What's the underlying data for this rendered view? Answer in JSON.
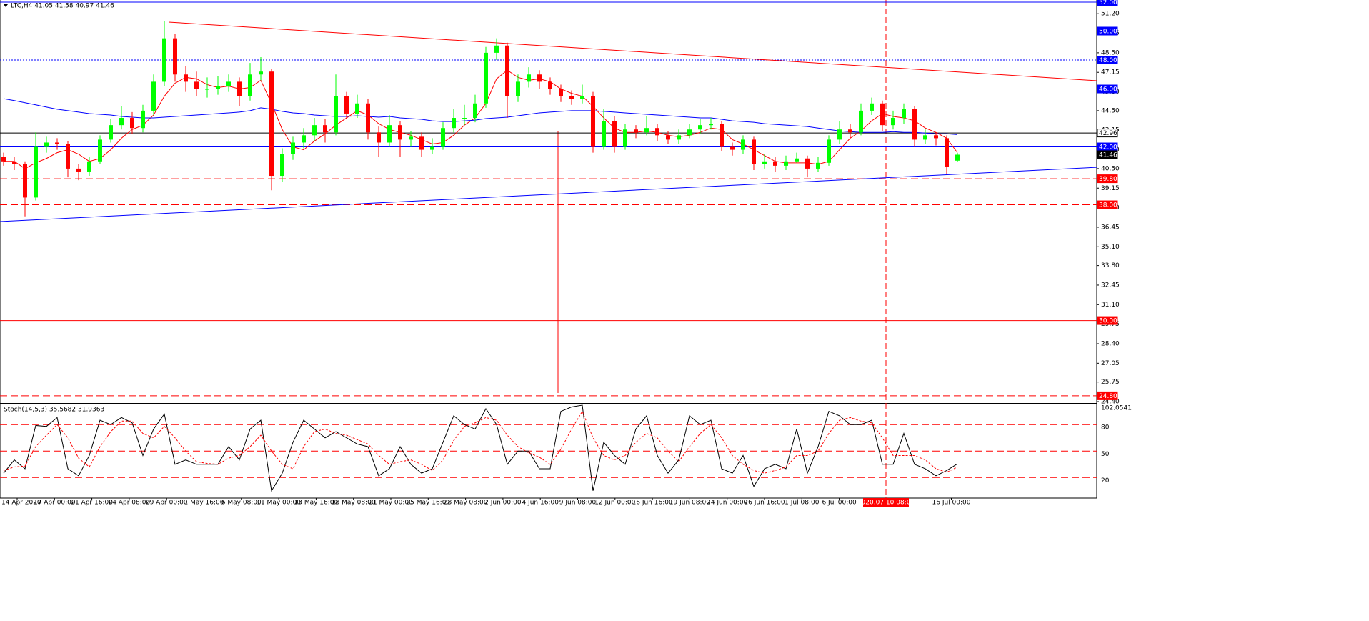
{
  "chart_data": {
    "type": "candlestick",
    "title": "LTC,H4  41.05 41.58 40.97 41.46",
    "ylim": [
      24.4,
      52.0
    ],
    "yticks": [
      {
        "value": 51.2,
        "label": "51.20"
      },
      49.85,
      {
        "value": 48.5,
        "label": "48.50"
      },
      47.15,
      {
        "value": 45.8,
        "label": "45.80"
      },
      {
        "value": 44.5,
        "label": "44.50"
      },
      43.15,
      {
        "value": 41.8,
        "label": "41.80"
      },
      {
        "value": 40.5,
        "label": "40.50"
      },
      39.15,
      {
        "value": 37.8,
        "label": "37.80"
      },
      36.45,
      {
        "value": 35.1,
        "label": "35.10"
      },
      {
        "value": 33.8,
        "label": "33.80"
      },
      32.45,
      {
        "value": 31.1,
        "label": "31.10"
      },
      29.75,
      {
        "value": 28.4,
        "label": "28.40"
      },
      27.05,
      25.75,
      {
        "value": 24.4,
        "label": "24.40"
      }
    ],
    "time_labels": [
      "14 Apr 2020",
      "17 Apr 00:00",
      "21 Apr 16:00",
      "24 Apr 08:00",
      "29 Apr 00:00",
      "1 May 16:00",
      "6 May 08:00",
      "11 May 00:00",
      "13 May 16:00",
      "18 May 08:00",
      "21 May 00:00",
      "25 May 16:00",
      "28 May 08:00",
      "2 Jun 00:00",
      "4 Jun 16:00",
      "9 Jun 08:00",
      "12 Jun 00:00",
      "16 Jun 16:00",
      "19 Jun 08:00",
      "24 Jun 00:00",
      "26 Jun 16:00",
      "1 Jul 08:00",
      "6 Jul 00:00",
      "16 Jul 00:00"
    ],
    "crosshair_label": "2020.07.10 08:00",
    "up_color": "#00ff00",
    "down_color": "#ff0000",
    "open": [
      41.3,
      41.0,
      40.8,
      38.5,
      42.0,
      42.3,
      42.2,
      40.5,
      40.3,
      41.0,
      42.5,
      43.5,
      44.0,
      43.3,
      44.5,
      46.5,
      49.5,
      47.0,
      46.5,
      46.0,
      46.0,
      46.2,
      46.5,
      45.5,
      47.0,
      47.2,
      40.0,
      41.5,
      42.3,
      42.8,
      43.5,
      43.0,
      45.5,
      44.3,
      45.0,
      43.0,
      42.3,
      43.5,
      42.5,
      42.7,
      41.8,
      42.0,
      43.3,
      44.0,
      44.0,
      45.0,
      48.5,
      49.0,
      45.5,
      46.5,
      47.0,
      46.5,
      46.0,
      45.5,
      45.3,
      45.5,
      42.0,
      43.8,
      42.0,
      43.2,
      43.0,
      43.3,
      42.8,
      42.5,
      42.8,
      43.2,
      43.5,
      43.6,
      42.0,
      41.8,
      42.5,
      40.8,
      41.0,
      40.7,
      41.0,
      41.2,
      40.5,
      40.9,
      42.5,
      43.2,
      43.0,
      44.5,
      45.0,
      43.5,
      44.0,
      44.6,
      42.5,
      42.8,
      42.6,
      41.05
    ],
    "high": [
      41.6,
      41.3,
      41.0,
      43.0,
      42.7,
      42.6,
      42.4,
      40.8,
      41.3,
      42.8,
      43.9,
      44.8,
      44.4,
      44.9,
      47.0,
      50.7,
      49.8,
      47.6,
      47.2,
      46.8,
      46.9,
      47.0,
      46.8,
      47.8,
      48.2,
      47.4,
      41.9,
      42.7,
      43.3,
      44.0,
      43.9,
      47.0,
      45.8,
      45.6,
      45.3,
      43.4,
      44.2,
      43.8,
      43.1,
      43.0,
      42.6,
      43.7,
      44.6,
      44.9,
      45.6,
      48.9,
      49.5,
      49.2,
      47.0,
      47.5,
      47.3,
      46.8,
      46.3,
      45.9,
      46.3,
      45.8,
      44.6,
      44.1,
      43.6,
      43.5,
      44.1,
      43.6,
      43.1,
      43.2,
      43.6,
      43.9,
      44.0,
      43.8,
      42.3,
      42.8,
      42.7,
      41.5,
      41.3,
      41.4,
      41.6,
      41.4,
      41.3,
      42.8,
      43.8,
      43.6,
      45.0,
      45.4,
      45.2,
      44.5,
      45.0,
      44.8,
      43.2,
      43.0,
      42.8,
      41.58
    ],
    "low": [
      40.7,
      40.4,
      37.2,
      38.3,
      41.6,
      41.8,
      39.9,
      39.7,
      40.0,
      40.8,
      42.3,
      43.2,
      42.9,
      43.0,
      44.2,
      46.2,
      46.5,
      45.8,
      45.5,
      45.4,
      45.6,
      45.8,
      44.8,
      45.2,
      46.6,
      39.0,
      39.6,
      41.1,
      41.9,
      42.4,
      42.3,
      42.8,
      43.9,
      44.0,
      42.5,
      41.3,
      42.0,
      41.3,
      42.0,
      41.3,
      41.5,
      41.8,
      43.0,
      43.5,
      43.7,
      44.7,
      48.0,
      44.0,
      45.1,
      46.1,
      46.0,
      45.6,
      45.1,
      44.9,
      45.0,
      41.6,
      41.8,
      41.6,
      41.8,
      42.6,
      42.8,
      42.4,
      42.2,
      42.2,
      42.6,
      42.9,
      43.2,
      41.7,
      41.4,
      41.5,
      40.4,
      40.5,
      40.3,
      40.4,
      40.9,
      39.9,
      40.3,
      40.7,
      42.2,
      42.6,
      42.8,
      44.2,
      43.1,
      43.2,
      43.6,
      42.0,
      42.2,
      42.1,
      40.1,
      40.97
    ],
    "close": [
      41.0,
      40.8,
      38.5,
      42.0,
      42.3,
      42.2,
      40.5,
      40.3,
      41.0,
      42.5,
      43.5,
      44.0,
      43.3,
      44.5,
      46.5,
      49.5,
      47.0,
      46.5,
      46.0,
      46.0,
      46.2,
      46.5,
      45.5,
      47.0,
      47.2,
      40.0,
      41.5,
      42.3,
      42.8,
      43.5,
      43.0,
      45.5,
      44.3,
      45.0,
      43.0,
      42.3,
      43.5,
      42.5,
      42.7,
      41.8,
      42.0,
      43.3,
      44.0,
      44.0,
      45.0,
      48.5,
      49.0,
      45.5,
      46.5,
      47.0,
      46.5,
      46.0,
      45.5,
      45.3,
      45.5,
      42.0,
      43.8,
      42.0,
      43.2,
      43.0,
      43.3,
      42.8,
      42.5,
      42.8,
      43.2,
      43.5,
      43.6,
      42.0,
      41.8,
      42.5,
      40.8,
      41.0,
      40.7,
      41.0,
      41.2,
      40.5,
      40.9,
      42.5,
      43.2,
      43.0,
      44.5,
      45.0,
      43.5,
      44.0,
      44.6,
      42.5,
      42.8,
      42.6,
      40.6,
      41.46
    ],
    "lines": [
      {
        "color": "#ff0000",
        "values": [
          41.0,
          41.0,
          40.5,
          40.9,
          41.2,
          41.6,
          41.8,
          41.5,
          41.0,
          41.2,
          41.8,
          42.6,
          43.2,
          43.5,
          44.2,
          45.5,
          46.4,
          46.8,
          46.7,
          46.3,
          46.1,
          46.2,
          46.0,
          46.1,
          46.6,
          45.0,
          43.2,
          42.0,
          41.8,
          42.4,
          42.9,
          43.5,
          44.0,
          44.5,
          44.2,
          43.6,
          43.2,
          43.0,
          42.8,
          42.5,
          42.2,
          42.3,
          42.8,
          43.5,
          44.0,
          45.0,
          46.7,
          47.3,
          46.8,
          46.6,
          46.7,
          46.5,
          46.0,
          45.7,
          45.5,
          44.8,
          44.0,
          43.3,
          43.0,
          43.0,
          43.1,
          43.0,
          42.8,
          42.7,
          42.8,
          43.0,
          43.3,
          43.2,
          42.5,
          42.2,
          41.8,
          41.4,
          41.0,
          40.9,
          40.9,
          40.9,
          40.8,
          41.0,
          41.8,
          42.6,
          43.1,
          43.8,
          44.3,
          44.1,
          44.0,
          43.8,
          43.3,
          43.0,
          42.6,
          41.6
        ]
      },
      {
        "color": "#0000ff",
        "values": [
          45.33,
          45.2,
          45.05,
          44.9,
          44.75,
          44.6,
          44.5,
          44.4,
          44.3,
          44.25,
          44.2,
          44.1,
          44.05,
          44.0,
          44.0,
          44.05,
          44.1,
          44.15,
          44.2,
          44.25,
          44.3,
          44.35,
          44.4,
          44.5,
          44.7,
          44.6,
          44.45,
          44.35,
          44.3,
          44.2,
          44.15,
          44.1,
          44.1,
          44.15,
          44.1,
          44.05,
          44.1,
          44.0,
          43.95,
          43.9,
          43.8,
          43.75,
          43.75,
          43.8,
          43.85,
          43.95,
          44.0,
          44.05,
          44.15,
          44.25,
          44.35,
          44.4,
          44.45,
          44.5,
          44.5,
          44.5,
          44.45,
          44.4,
          44.35,
          44.3,
          44.25,
          44.2,
          44.15,
          44.1,
          44.05,
          44.0,
          44.0,
          43.9,
          43.8,
          43.75,
          43.7,
          43.6,
          43.55,
          43.5,
          43.45,
          43.4,
          43.3,
          43.2,
          43.1,
          43.05,
          43.0,
          43.0,
          43.0,
          43.05,
          43.0,
          43.0,
          42.95,
          42.9,
          42.9,
          42.85
        ]
      }
    ],
    "levels": [
      {
        "value": 52.0,
        "label": "52.00",
        "color": "#0000ff",
        "style": "solid"
      },
      {
        "value": 50.0,
        "label": "50.00",
        "color": "#0000ff",
        "style": "solid"
      },
      {
        "value": 48.0,
        "label": "48.00",
        "color": "#0000ff",
        "style": "dotted"
      },
      {
        "value": 46.0,
        "label": "46.00",
        "color": "#0000ff",
        "style": "dashed"
      },
      {
        "value": 42.96,
        "label": "42.96",
        "color": "#000000",
        "style": "solid"
      },
      {
        "value": 42.0,
        "label": "42.00",
        "color": "#0000ff",
        "style": "solid"
      },
      {
        "value": 41.46,
        "label": "41.46",
        "color": "#000000",
        "style": "none"
      },
      {
        "value": 39.8,
        "label": "39.80",
        "color": "#ff0000",
        "style": "dashed"
      },
      {
        "value": 38.0,
        "label": "38.00",
        "color": "#ff0000",
        "style": "dashed"
      },
      {
        "value": 30.0,
        "label": "30.00",
        "color": "#ff0000",
        "style": "solid"
      },
      {
        "value": 24.8,
        "label": "24.80",
        "color": "#ff0000",
        "style": "dashed"
      }
    ],
    "trendlines": [
      {
        "color": "#ff0000",
        "values": [
          50.62,
          46.57
        ]
      },
      {
        "color": "#0000ff",
        "values": [
          36.84,
          40.59
        ]
      }
    ],
    "indicator": {
      "title": "Stoch(14,5,3) 35.5682 31.9363",
      "ylim": [
        0,
        102.0541
      ],
      "yticks": [
        102.0541,
        80,
        50,
        20
      ],
      "main": {
        "color": "#000000",
        "values": [
          25,
          40,
          30,
          79,
          78,
          88,
          30,
          22,
          45,
          85,
          80,
          88,
          82,
          45,
          75,
          92,
          35,
          40,
          35,
          35,
          35,
          55,
          40,
          75,
          85,
          5,
          25,
          60,
          85,
          75,
          65,
          72,
          65,
          58,
          55,
          22,
          30,
          55,
          35,
          25,
          30,
          60,
          90,
          80,
          75,
          98,
          80,
          35,
          50,
          50,
          30,
          30,
          95,
          100,
          102,
          5,
          60,
          45,
          35,
          75,
          90,
          45,
          25,
          40,
          90,
          80,
          85,
          30,
          25,
          45,
          10,
          30,
          35,
          30,
          75,
          25,
          55,
          95,
          90,
          80,
          80,
          85,
          35,
          35,
          70,
          35,
          30,
          22,
          28,
          35.5682
        ]
      },
      "signal": {
        "color": "#ff0000",
        "values": [
          28,
          32,
          33,
          55,
          68,
          80,
          65,
          42,
          32,
          55,
          72,
          84,
          84,
          70,
          65,
          78,
          65,
          50,
          38,
          36,
          35,
          42,
          45,
          55,
          68,
          50,
          35,
          30,
          55,
          72,
          75,
          70,
          68,
          63,
          58,
          45,
          35,
          38,
          40,
          35,
          28,
          40,
          62,
          78,
          82,
          88,
          85,
          68,
          55,
          48,
          43,
          35,
          52,
          75,
          95,
          65,
          45,
          40,
          45,
          60,
          70,
          65,
          50,
          38,
          55,
          70,
          80,
          65,
          45,
          35,
          28,
          25,
          28,
          32,
          45,
          45,
          50,
          70,
          85,
          88,
          84,
          82,
          65,
          45,
          45,
          45,
          40,
          30,
          26,
          31.9363
        ]
      }
    }
  }
}
